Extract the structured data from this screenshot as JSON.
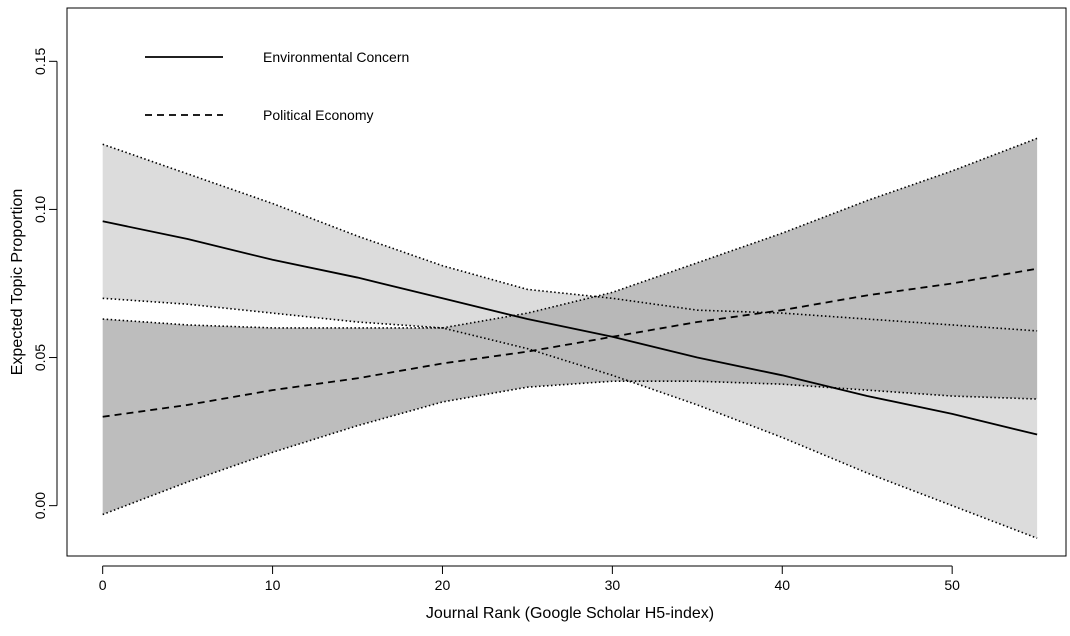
{
  "chart_data": {
    "type": "line",
    "xlabel": "Journal Rank (Google Scholar H5-index)",
    "ylabel": "Expected Topic Proportion",
    "xlim": [
      -2.1,
      56.7
    ],
    "ylim": [
      -0.017,
      0.168
    ],
    "x_ticks": [
      0,
      10,
      20,
      30,
      40,
      50
    ],
    "y_ticks": [
      0.0,
      0.05,
      0.1,
      0.15
    ],
    "x_tick_labels": [
      "0",
      "10",
      "20",
      "30",
      "40",
      "50"
    ],
    "y_tick_labels": [
      "0.00",
      "0.05",
      "0.10",
      "0.15"
    ],
    "legend_position": "top-left",
    "grid": false,
    "series": [
      {
        "name": "Environmental Concern",
        "line_style": "solid",
        "band_color": "#dcdcdc",
        "x": [
          0,
          5,
          10,
          15,
          20,
          25,
          30,
          35,
          40,
          45,
          50,
          55
        ],
        "values": [
          0.096,
          0.09,
          0.083,
          0.077,
          0.07,
          0.063,
          0.057,
          0.05,
          0.044,
          0.037,
          0.031,
          0.024
        ],
        "lower": [
          0.07,
          0.068,
          0.065,
          0.062,
          0.06,
          0.053,
          0.044,
          0.034,
          0.023,
          0.011,
          -0.0,
          -0.011
        ],
        "upper": [
          0.122,
          0.112,
          0.102,
          0.091,
          0.081,
          0.073,
          0.07,
          0.066,
          0.065,
          0.063,
          0.061,
          0.059
        ]
      },
      {
        "name": "Political Economy",
        "line_style": "dashed",
        "band_color": "#b2b2b2",
        "x": [
          0,
          5,
          10,
          15,
          20,
          25,
          30,
          35,
          40,
          45,
          50,
          55
        ],
        "values": [
          0.03,
          0.034,
          0.039,
          0.043,
          0.048,
          0.052,
          0.057,
          0.062,
          0.066,
          0.071,
          0.075,
          0.08
        ],
        "lower": [
          -0.003,
          0.008,
          0.018,
          0.027,
          0.035,
          0.04,
          0.042,
          0.042,
          0.041,
          0.039,
          0.037,
          0.036
        ],
        "upper": [
          0.063,
          0.061,
          0.06,
          0.06,
          0.06,
          0.065,
          0.072,
          0.082,
          0.092,
          0.103,
          0.113,
          0.124
        ]
      }
    ]
  }
}
